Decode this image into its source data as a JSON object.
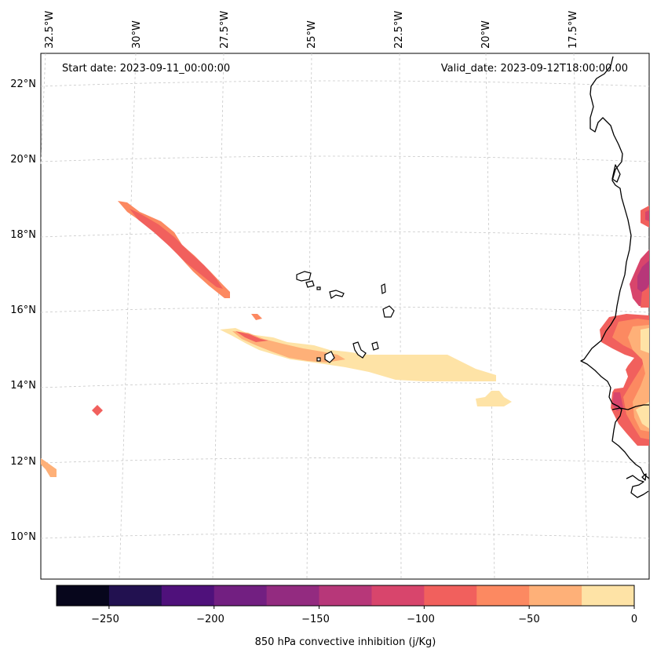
{
  "header": {
    "start_label": "Start date: 2023-09-11_00:00:00",
    "valid_label": "Valid_date: 2023-09-12T18:00:00.00"
  },
  "lon_labels": [
    "32.5°W",
    "30°W",
    "27.5°W",
    "25°W",
    "22.5°W",
    "20°W",
    "17.5°W"
  ],
  "lat_labels": [
    "22°N",
    "20°N",
    "18°N",
    "16°N",
    "14°N",
    "12°N",
    "10°N"
  ],
  "colorbar": {
    "title": "850 hPa convective inhibition (j/Kg)",
    "tick_labels": [
      "−250",
      "−200",
      "−150",
      "−100",
      "−50",
      "0"
    ],
    "bins": [
      -275,
      -250,
      -225,
      -200,
      -175,
      -150,
      -125,
      -100,
      -75,
      -50,
      -25,
      0
    ],
    "colors": [
      "#07061c",
      "#221150",
      "#4f117b",
      "#721f81",
      "#932b80",
      "#b73779",
      "#d8456c",
      "#f1605d",
      "#fc8961",
      "#feb078",
      "#fee3a6"
    ]
  }
}
